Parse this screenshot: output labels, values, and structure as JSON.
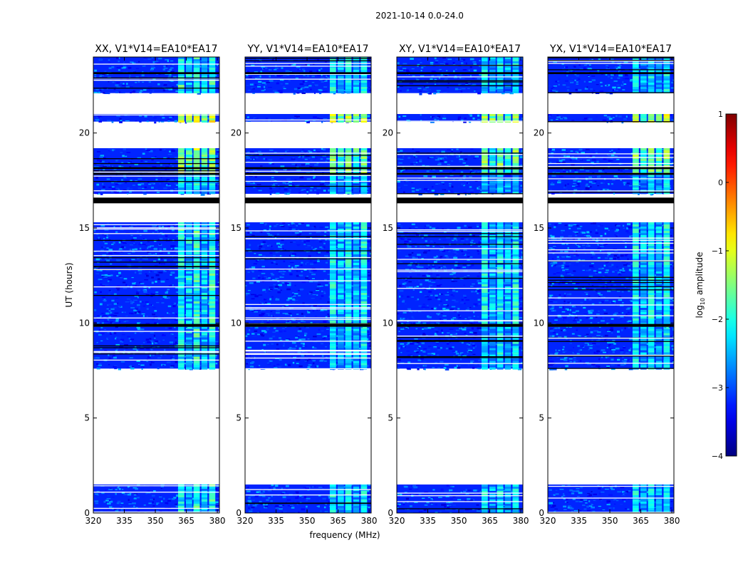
{
  "chart_data": {
    "type": "heatmap",
    "title": "2021-10-14 0.0-24.0",
    "xlabel": "frequency (MHz)",
    "ylabel": "UT (hours)",
    "xlim": [
      320,
      381
    ],
    "ylim": [
      0,
      24
    ],
    "xticks": [
      320,
      335,
      350,
      365,
      380
    ],
    "xtick_labels": [
      "320",
      "335",
      "350",
      "365",
      "380"
    ],
    "yticks": [
      0,
      5,
      10,
      15,
      20
    ],
    "ytick_labels": [
      "0",
      "5",
      "10",
      "15",
      "20"
    ],
    "panels": [
      {
        "title": "XX, V1*V14=EA10*EA17",
        "hot_scale": 1.0
      },
      {
        "title": "YY, V1*V14=EA10*EA17",
        "hot_scale": 0.85
      },
      {
        "title": "XY, V1*V14=EA10*EA17",
        "hot_scale": 0.75
      },
      {
        "title": "YX, V1*V14=EA10*EA17",
        "hot_scale": 0.8
      }
    ],
    "data_blocks_ut": [
      {
        "start": 0.0,
        "end": 1.5,
        "level": 2.3
      },
      {
        "start": 7.6,
        "end": 9.8,
        "level": 2.3
      },
      {
        "start": 9.8,
        "end": 15.3,
        "level": 2.2
      },
      {
        "start": 16.8,
        "end": 17.8,
        "level": 2.4
      },
      {
        "start": 17.9,
        "end": 19.2,
        "level": 1.6
      },
      {
        "start": 20.6,
        "end": 21.0,
        "level": 1.3
      },
      {
        "start": 22.1,
        "end": 24.0,
        "level": 2.3
      }
    ],
    "flagged_gaps_ut": [
      {
        "start": 1.5,
        "end": 7.6
      },
      {
        "start": 19.2,
        "end": 20.6
      },
      {
        "start": 21.0,
        "end": 22.1
      }
    ],
    "black_bands_ut": [
      {
        "start": 16.3,
        "end": 16.6
      },
      {
        "start": 17.8,
        "end": 17.9
      },
      {
        "start": 9.8,
        "end": 9.95
      },
      {
        "start": 18.1,
        "end": 18.2
      },
      {
        "start": 23.1,
        "end": 23.2
      }
    ],
    "bright_channel_mhz": [
      [
        361,
        364
      ],
      [
        364.8,
        367.8
      ],
      [
        368.5,
        371.5
      ],
      [
        372.3,
        375.2
      ],
      [
        376,
        379
      ]
    ],
    "colorbar": {
      "label": "log10 amplitude",
      "min": -4,
      "max": 1,
      "ticks": [
        1,
        0,
        -1,
        -2,
        -3,
        -4
      ],
      "tick_labels": [
        "1",
        "0",
        "−1",
        "−2",
        "−3",
        "−4"
      ]
    }
  }
}
